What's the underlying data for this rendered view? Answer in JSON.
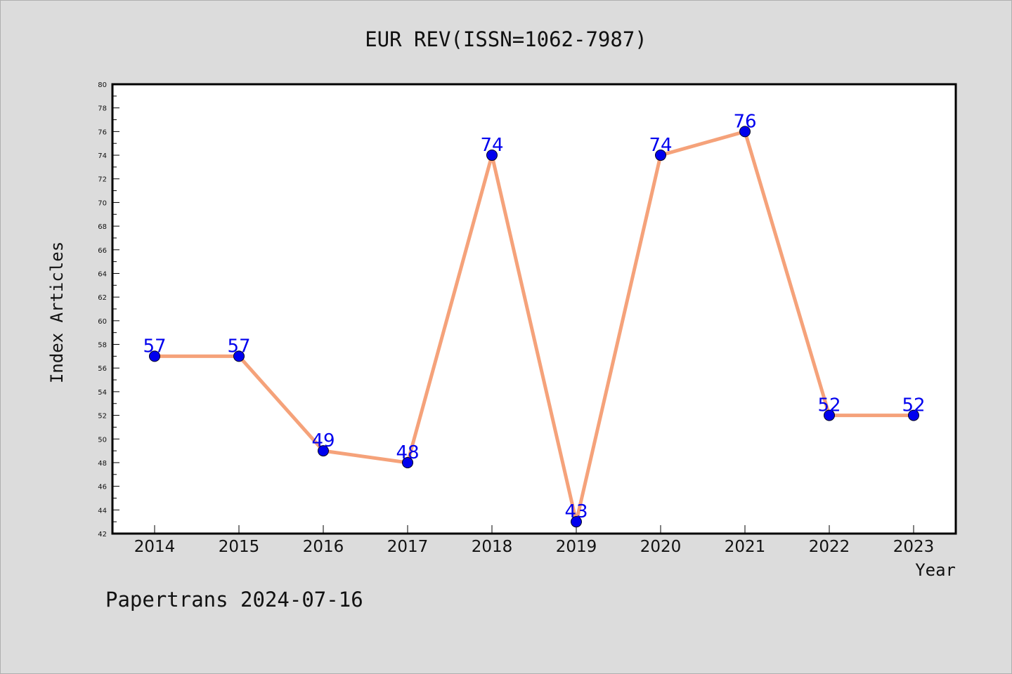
{
  "chart_data": {
    "type": "line",
    "title": "EUR REV(ISSN=1062-7987)",
    "xlabel": "Year",
    "ylabel": "Index Articles",
    "categories": [
      "2014",
      "2015",
      "2016",
      "2017",
      "2018",
      "2019",
      "2020",
      "2021",
      "2022",
      "2023"
    ],
    "values": [
      57,
      57,
      49,
      48,
      74,
      43,
      74,
      76,
      52,
      52
    ],
    "data_labels": [
      "57",
      "57",
      "49",
      "48",
      "74",
      "43",
      "74",
      "76",
      "52",
      "52"
    ],
    "ylim": [
      42,
      80
    ],
    "yticks": [
      42,
      44,
      46,
      48,
      50,
      52,
      54,
      56,
      58,
      60,
      62,
      64,
      66,
      68,
      70,
      72,
      74,
      76,
      78,
      80
    ],
    "grid": false,
    "legend": "none",
    "line_color": "#f5a27a",
    "marker_color": "#0000ee"
  },
  "footer": {
    "watermark": "Papertrans 2024-07-16"
  }
}
